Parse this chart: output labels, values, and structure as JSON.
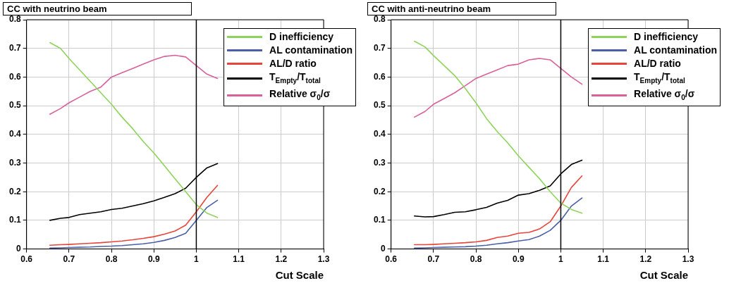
{
  "chart_data": [
    {
      "type": "line",
      "title": "CC with neutrino beam",
      "xlabel": "Cut Scale",
      "x": [
        0.655,
        0.68,
        0.7,
        0.725,
        0.75,
        0.775,
        0.8,
        0.825,
        0.85,
        0.875,
        0.9,
        0.925,
        0.95,
        0.975,
        1.0,
        1.025,
        1.05
      ],
      "series": [
        {
          "name": "D inefficiency",
          "color": "#8fd45a",
          "values": [
            0.72,
            0.7,
            0.665,
            0.625,
            0.585,
            0.545,
            0.505,
            0.46,
            0.42,
            0.375,
            0.335,
            0.29,
            0.245,
            0.2,
            0.155,
            0.125,
            0.11
          ]
        },
        {
          "name": "AL contamination",
          "color": "#4a5fa8",
          "values": [
            0.003,
            0.004,
            0.005,
            0.006,
            0.007,
            0.009,
            0.01,
            0.012,
            0.015,
            0.018,
            0.023,
            0.03,
            0.04,
            0.055,
            0.1,
            0.145,
            0.17
          ]
        },
        {
          "name": "AL/D ratio",
          "color": "#e8443a",
          "values": [
            0.013,
            0.015,
            0.016,
            0.018,
            0.02,
            0.022,
            0.025,
            0.028,
            0.032,
            0.037,
            0.043,
            0.052,
            0.063,
            0.083,
            0.13,
            0.18,
            0.222
          ]
        },
        {
          "name": "T$_{Empty}$/T$_{total}$",
          "color": "#000000",
          "values": [
            0.1,
            0.107,
            0.11,
            0.12,
            0.125,
            0.13,
            0.138,
            0.142,
            0.15,
            0.158,
            0.168,
            0.18,
            0.193,
            0.212,
            0.25,
            0.283,
            0.298
          ]
        },
        {
          "name": "Relative σ$_{0}$/σ",
          "color": "#d9609a",
          "values": [
            0.47,
            0.49,
            0.51,
            0.53,
            0.55,
            0.565,
            0.6,
            0.615,
            0.63,
            0.645,
            0.66,
            0.672,
            0.676,
            0.67,
            0.64,
            0.61,
            0.595
          ]
        }
      ],
      "xlim": [
        0.6,
        1.3
      ],
      "xticks": [
        0.6,
        0.7,
        0.8,
        0.9,
        1,
        1.1,
        1.2,
        1.3
      ],
      "ylim": [
        0,
        0.8
      ],
      "yticks": [
        0,
        0.1,
        0.2,
        0.3,
        0.4,
        0.5,
        0.6,
        0.7,
        0.8
      ],
      "ref_lines": [
        {
          "axis": "x",
          "value": 1,
          "color": "#000000"
        }
      ],
      "grid": true,
      "legend": "top right",
      "marker": "none",
      "line_style": "solid"
    },
    {
      "type": "line",
      "title": "CC with anti-neutrino beam",
      "xlabel": "Cut Scale",
      "x": [
        0.655,
        0.68,
        0.7,
        0.725,
        0.75,
        0.775,
        0.8,
        0.825,
        0.85,
        0.875,
        0.9,
        0.925,
        0.95,
        0.975,
        1.0,
        1.025,
        1.05
      ],
      "series": [
        {
          "name": "D inefficiency",
          "color": "#8fd45a",
          "values": [
            0.725,
            0.705,
            0.675,
            0.64,
            0.605,
            0.56,
            0.51,
            0.455,
            0.41,
            0.37,
            0.325,
            0.285,
            0.245,
            0.2,
            0.16,
            0.138,
            0.125
          ]
        },
        {
          "name": "AL contamination",
          "color": "#4a5fa8",
          "values": [
            0.003,
            0.004,
            0.005,
            0.006,
            0.007,
            0.008,
            0.01,
            0.013,
            0.018,
            0.022,
            0.028,
            0.033,
            0.045,
            0.065,
            0.1,
            0.15,
            0.178
          ]
        },
        {
          "name": "AL/D ratio",
          "color": "#e8443a",
          "values": [
            0.015,
            0.015,
            0.016,
            0.018,
            0.02,
            0.022,
            0.025,
            0.03,
            0.04,
            0.045,
            0.055,
            0.058,
            0.07,
            0.095,
            0.15,
            0.215,
            0.255
          ]
        },
        {
          "name": "T$_{Empty}$/T$_{total}$",
          "color": "#000000",
          "values": [
            0.115,
            0.112,
            0.113,
            0.12,
            0.128,
            0.13,
            0.137,
            0.145,
            0.16,
            0.17,
            0.188,
            0.193,
            0.205,
            0.22,
            0.262,
            0.295,
            0.31
          ]
        },
        {
          "name": "Relative σ$_{0}$/σ",
          "color": "#d9609a",
          "values": [
            0.46,
            0.48,
            0.505,
            0.525,
            0.545,
            0.57,
            0.595,
            0.61,
            0.625,
            0.64,
            0.645,
            0.66,
            0.665,
            0.66,
            0.63,
            0.6,
            0.575
          ]
        }
      ],
      "xlim": [
        0.6,
        1.3
      ],
      "xticks": [
        0.6,
        0.7,
        0.8,
        0.9,
        1,
        1.1,
        1.2,
        1.3
      ],
      "ylim": [
        0,
        0.8
      ],
      "yticks": [
        0,
        0.1,
        0.2,
        0.3,
        0.4,
        0.5,
        0.6,
        0.7,
        0.8
      ],
      "ref_lines": [
        {
          "axis": "x",
          "value": 1,
          "color": "#000000"
        }
      ],
      "grid": true,
      "legend": "top right",
      "marker": "none",
      "line_style": "solid"
    }
  ]
}
